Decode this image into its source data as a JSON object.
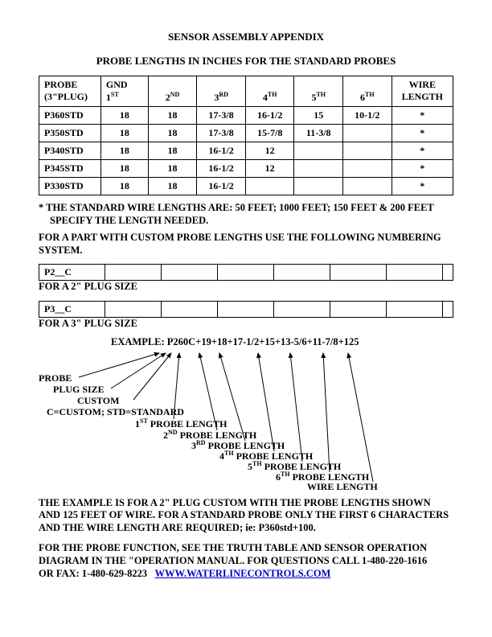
{
  "title": "SENSOR ASSEMBLY APPENDIX",
  "subtitle": "PROBE LENGTHS IN INCHES FOR THE STANDARD PROBES",
  "table1": {
    "headers": {
      "c1a": "PROBE",
      "c1b": "(3\"PLUG)",
      "c2a": "GND",
      "c2b": "1",
      "c3": "2",
      "c4": "3",
      "c5": "4",
      "c6": "5",
      "c7": "6",
      "c8a": "WIRE",
      "c8b": "LENGTH"
    },
    "rows": [
      [
        "P360STD",
        "18",
        "18",
        "17-3/8",
        "16-1/2",
        "15",
        "10-1/2",
        "*"
      ],
      [
        "P350STD",
        "18",
        "18",
        "17-3/8",
        "15-7/8",
        "11-3/8",
        "",
        "*"
      ],
      [
        "P340STD",
        "18",
        "18",
        "16-1/2",
        "12",
        "",
        "",
        "*"
      ],
      [
        "P345STD",
        "18",
        "18",
        "16-1/2",
        "12",
        "",
        "",
        "*"
      ],
      [
        "P330STD",
        "18",
        "18",
        "16-1/2",
        "",
        "",
        "",
        "*"
      ]
    ]
  },
  "note1a": "* THE STANDARD WIRE LENGTHS ARE: 50 FEET; 1000 FEET; 150 FEET & 200 FEET",
  "note1b": "SPECIFY THE LENGTH NEEDED.",
  "note2": "FOR A PART WITH CUSTOM PROBE LENGTHS USE THE FOLLOWING NUMBERING SYSTEM.",
  "p2c": "P2__C",
  "p2c_caption": "FOR A 2\" PLUG SIZE",
  "p3c": "P3__C",
  "p3c_caption": "FOR A 3\" PLUG SIZE",
  "example_line": "EXAMPLE: P260C+19+18+17-1/2+15+13-5/6+11-7/8+125",
  "labels": {
    "probe": "PROBE",
    "plugsize": "PLUG SIZE",
    "custom": "CUSTOM",
    "customstd": "C=CUSTOM; STD=STANDARD",
    "p1": "1",
    "p1s": " PROBE LENGTH",
    "p2": "2",
    "p2s": " PROBE LENGTH",
    "p3": "3",
    "p3s": " PROBE LENGTH",
    "p4": "4",
    "p4s": " PROBE LENGTH",
    "p5": "5",
    "p5s": " PROBE LENGTH",
    "p6": "6",
    "p6s": " PROBE LENGTH",
    "wire": "WIRE LENGTH"
  },
  "para2": "THE EXAMPLE IS FOR A 2\" PLUG CUSTOM WITH THE PROBE LENGTHS SHOWN AND 125 FEET OF WIRE. FOR A STANDARD PROBE ONLY THE FIRST 6 CHARACTERS AND THE WIRE LENGTH ARE REQUIRED; ie: P360std+100.",
  "para3a": "FOR THE PROBE FUNCTION, SEE THE TRUTH TABLE AND SENSOR OPERATION DIAGRAM IN THE \"OPERATION MANUAL. FOR QUESTIONS CALL 1-480-220-1616",
  "para3b": "OR FAX: 1-480-629-8223",
  "link": "WWW.WATERLINECONTROLS.COM"
}
